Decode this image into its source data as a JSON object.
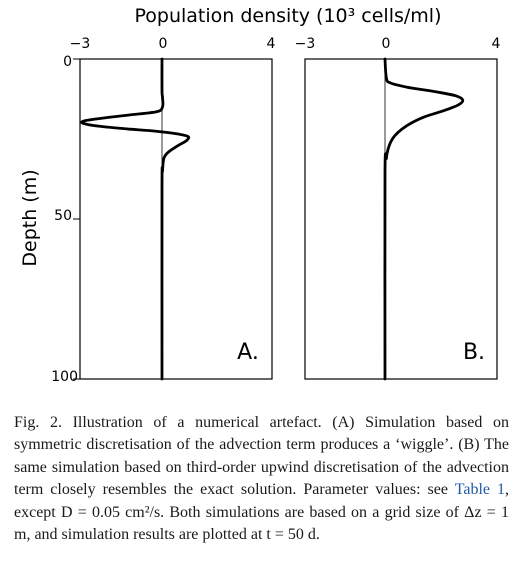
{
  "figure": {
    "top_label": "Population density (10³ cells/ml)",
    "y_label": "Depth (m)",
    "y_ticks": [
      "0",
      "50",
      "100"
    ]
  },
  "chart_data": [
    {
      "type": "line",
      "panel_label": "A.",
      "xlim": [
        -3,
        4
      ],
      "ylim": [
        0,
        100
      ],
      "y_inverted": true,
      "x_ticks": [
        "−3",
        "0",
        "4"
      ],
      "series": [
        {
          "description_of_line": "wiggle",
          "points": [
            [
              0,
              0
            ],
            [
              0,
              10
            ],
            [
              0.02,
              12
            ],
            [
              0.02,
              15
            ],
            [
              -0.2,
              16.5
            ],
            [
              -1.2,
              17.5
            ],
            [
              -2.2,
              18.5
            ],
            [
              -2.9,
              19.5
            ],
            [
              -2.7,
              20.5
            ],
            [
              -1.5,
              21.7
            ],
            [
              -0.3,
              22.5
            ],
            [
              0.5,
              23.3
            ],
            [
              0.95,
              24.2
            ],
            [
              0.9,
              25.5
            ],
            [
              0.6,
              27
            ],
            [
              0.25,
              29
            ],
            [
              0.07,
              31
            ],
            [
              0.02,
              35
            ],
            [
              0,
              40
            ],
            [
              0,
              100
            ]
          ]
        }
      ]
    },
    {
      "type": "line",
      "panel_label": "B.",
      "xlim": [
        -3,
        4
      ],
      "ylim": [
        0,
        100
      ],
      "y_inverted": true,
      "x_ticks": [
        "−3",
        "0",
        "4"
      ],
      "series": [
        {
          "points": [
            [
              0,
              0
            ],
            [
              0.05,
              6
            ],
            [
              0.2,
              7.5
            ],
            [
              0.8,
              8.8
            ],
            [
              1.8,
              10.2
            ],
            [
              2.55,
              11.5
            ],
            [
              2.8,
              12.8
            ],
            [
              2.65,
              14.3
            ],
            [
              2.1,
              16.2
            ],
            [
              1.45,
              18
            ],
            [
              0.95,
              20
            ],
            [
              0.6,
              22
            ],
            [
              0.35,
              24
            ],
            [
              0.2,
              26
            ],
            [
              0.1,
              28.5
            ],
            [
              0.05,
              31
            ],
            [
              0,
              36
            ],
            [
              0,
              100
            ]
          ]
        }
      ]
    }
  ],
  "caption": {
    "part1": "Fig. 2. Illustration of a numerical artefact. (A) Simulation based on symmetric discretisation of the advection term produces a ‘wiggle’. (B) The same simulation based on third-order upwind discretisation of the advection term closely resembles the exact solution. Parameter values: see ",
    "link": "Table 1",
    "part2": ", except D = 0.05 cm²/s. Both simulations are based on a grid size of Δz = 1 m, and simulation results are plotted at t = 50 d."
  }
}
